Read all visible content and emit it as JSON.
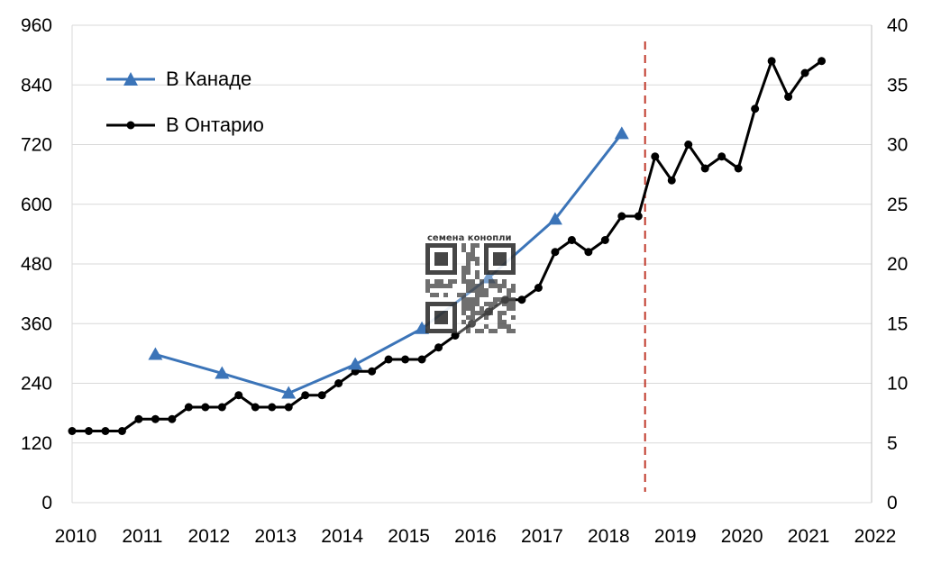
{
  "chart_data": {
    "type": "line",
    "title": "",
    "xlabel": "",
    "ylabel": "",
    "x_ticks": [
      2010,
      2011,
      2012,
      2013,
      2014,
      2015,
      2016,
      2017,
      2018,
      2019,
      2020,
      2021,
      2022
    ],
    "xlim": [
      2010,
      2022
    ],
    "ylim_left": [
      0,
      960
    ],
    "yticks_left": [
      0,
      120,
      240,
      360,
      480,
      600,
      720,
      840,
      960
    ],
    "ylim_right": [
      0,
      40
    ],
    "yticks_right": [
      0,
      5,
      10,
      15,
      20,
      25,
      30,
      35,
      40
    ],
    "grid": "horizontal",
    "legend_position": "top-left",
    "vline_x": 2018.6,
    "series": [
      {
        "name": "В Канаде",
        "axis": "left",
        "marker": "triangle",
        "color": "#3b74b8",
        "x": [
          2011.25,
          2012.25,
          2013.25,
          2014.25,
          2015.25,
          2016.25,
          2017.25,
          2018.25
        ],
        "values": [
          298,
          260,
          220,
          278,
          350,
          452,
          570,
          742
        ]
      },
      {
        "name": "В Онтарио",
        "axis": "right",
        "marker": "circle",
        "color": "#000000",
        "x": [
          2010,
          2010.25,
          2010.5,
          2010.75,
          2011,
          2011.25,
          2011.5,
          2011.75,
          2012,
          2012.25,
          2012.5,
          2012.75,
          2013,
          2013.25,
          2013.5,
          2013.75,
          2014,
          2014.25,
          2014.5,
          2014.75,
          2015,
          2015.25,
          2015.5,
          2015.75,
          2016,
          2016.25,
          2016.5,
          2016.75,
          2017,
          2017.25,
          2017.5,
          2017.75,
          2018,
          2018.25,
          2018.5,
          2018.75,
          2019,
          2019.25,
          2019.5,
          2019.75,
          2020,
          2020.25,
          2020.5,
          2020.75,
          2021,
          2021.25
        ],
        "values": [
          6,
          6,
          6,
          6,
          7,
          7,
          7,
          8,
          8,
          8,
          9,
          8,
          8,
          8,
          9,
          9,
          10,
          11,
          11,
          12,
          12,
          12,
          13,
          14,
          15,
          16,
          17,
          17,
          18,
          21,
          22,
          21,
          22,
          24,
          24,
          29,
          27,
          30,
          28,
          29,
          28,
          33,
          37,
          34,
          36,
          37
        ]
      }
    ]
  },
  "watermark": {
    "text": "семена конопли"
  }
}
